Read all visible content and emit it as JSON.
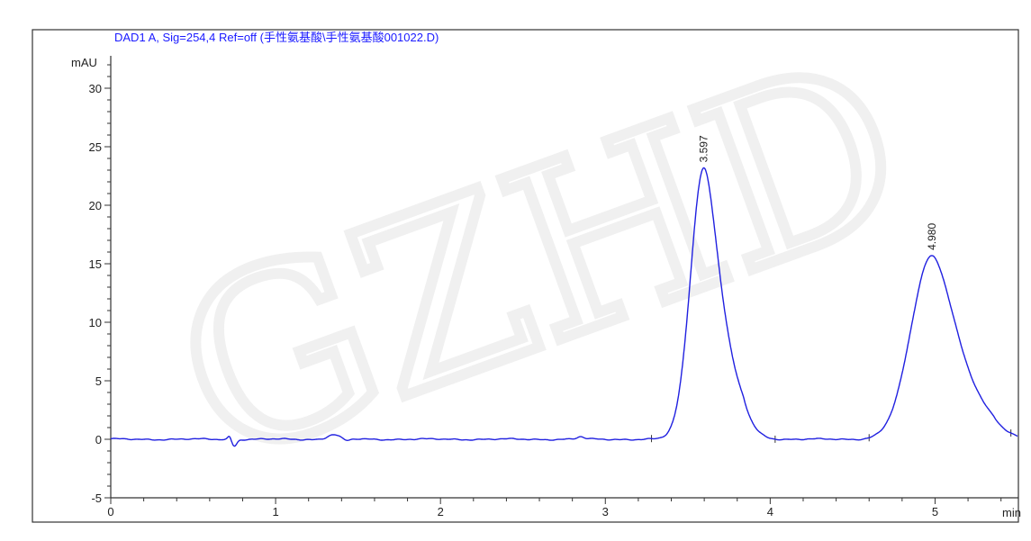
{
  "watermark": "GZHD",
  "chart_data": {
    "type": "line",
    "title": "DAD1 A, Sig=254,4 Ref=off (手性氨基酸\\手性氨基酸001022.D)",
    "xlabel": "min",
    "ylabel": "mAU",
    "xlim": [
      0,
      5.5
    ],
    "ylim": [
      -5,
      32.5
    ],
    "x_ticks": [
      "0",
      "1",
      "2",
      "3",
      "4",
      "5"
    ],
    "y_ticks": [
      "-5",
      "0",
      "5",
      "10",
      "15",
      "20",
      "25",
      "30"
    ],
    "x_minor_step": 0.2,
    "y_minor_step": 1,
    "grid": false,
    "line_color": "#2020e0",
    "peaks": [
      {
        "rt": 3.597,
        "label": "3.597",
        "height": 23.2,
        "sigma": 0.08,
        "tail": 0.03
      },
      {
        "rt": 4.98,
        "label": "4.980",
        "height": 15.7,
        "sigma": 0.125,
        "tail": 0.04
      }
    ],
    "baseline_events": [
      {
        "x": 0.72,
        "y": 0.3,
        "w": 0.01
      },
      {
        "x": 0.75,
        "y": -0.55,
        "w": 0.015
      },
      {
        "x": 1.35,
        "y": 0.4,
        "w": 0.035
      },
      {
        "x": 1.43,
        "y": -0.15,
        "w": 0.02
      },
      {
        "x": 2.85,
        "y": 0.2,
        "w": 0.02
      }
    ],
    "integration_marks": [
      3.28,
      4.03,
      4.6,
      5.46
    ]
  }
}
